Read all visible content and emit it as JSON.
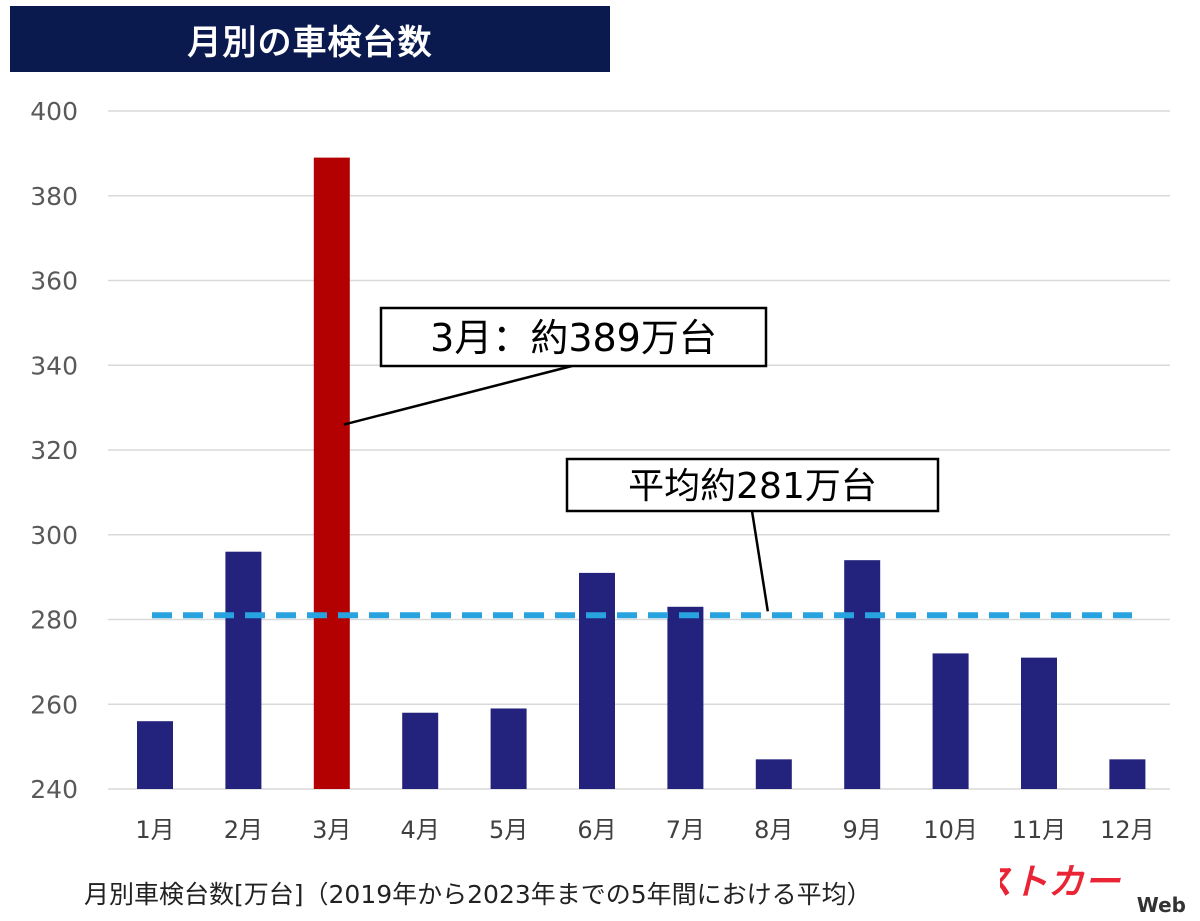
{
  "title": "月別の車検台数",
  "caption": "月別車検台数[万台]（2019年から2023年までの5年間における平均）",
  "logo": {
    "main": "ベストカー",
    "sub": "Web"
  },
  "chart_data": {
    "type": "bar",
    "categories": [
      "1月",
      "2月",
      "3月",
      "4月",
      "5月",
      "6月",
      "7月",
      "8月",
      "9月",
      "10月",
      "11月",
      "12月"
    ],
    "values": [
      256,
      296,
      389,
      258,
      259,
      291,
      283,
      247,
      294,
      272,
      271,
      247
    ],
    "highlight_index": 2,
    "ylim": [
      240,
      400
    ],
    "yticks": [
      240,
      260,
      280,
      300,
      320,
      340,
      360,
      380,
      400
    ],
    "grid": true,
    "average": 281,
    "colors": {
      "bar": "#23237d",
      "highlight": "#b30000",
      "average_line": "#29a3e0",
      "grid": "#d9d9d9"
    },
    "annotations": [
      {
        "text": "3月：約389万台",
        "target_category": "3月",
        "target_value": 326
      },
      {
        "text": "平均約281万台",
        "target_category": "8月",
        "target_value": 281
      }
    ]
  }
}
